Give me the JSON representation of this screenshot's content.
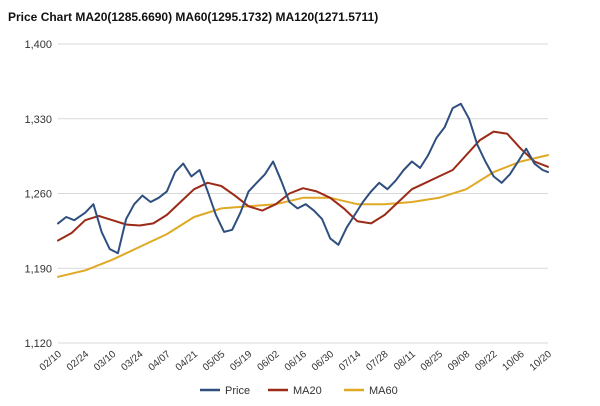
{
  "chart_data": {
    "type": "line",
    "title": "Price Chart MA20(1285.6690) MA60(1295.1732) MA120(1271.5711)",
    "ylim": [
      1120,
      1400
    ],
    "yticks": [
      1120,
      1190,
      1260,
      1330,
      1400
    ],
    "ytick_labels": [
      "1,120",
      "1,190",
      "1,260",
      "1,330",
      "1,400"
    ],
    "grid": true,
    "legend_position": "bottom",
    "categories": [
      "02/10",
      "02/24",
      "03/10",
      "03/24",
      "04/07",
      "04/21",
      "05/05",
      "05/19",
      "06/02",
      "06/16",
      "06/30",
      "07/14",
      "07/28",
      "08/11",
      "08/25",
      "09/08",
      "09/22",
      "10/06",
      "10/20"
    ],
    "series": [
      {
        "name": "Price",
        "color": "#2f4f7f",
        "x": [
          0,
          0.3,
          0.6,
          1,
          1.3,
          1.6,
          1.9,
          2.2,
          2.5,
          2.8,
          3.1,
          3.4,
          3.7,
          4,
          4.3,
          4.6,
          4.9,
          5.2,
          5.5,
          5.8,
          6.1,
          6.4,
          6.7,
          7,
          7.3,
          7.6,
          7.9,
          8.2,
          8.5,
          8.8,
          9.1,
          9.4,
          9.7,
          10,
          10.3,
          10.6,
          10.9,
          11.2,
          11.5,
          11.8,
          12.1,
          12.4,
          12.7,
          13,
          13.3,
          13.6,
          13.9,
          14.2,
          14.5,
          14.8,
          15.1,
          15.4,
          15.7,
          16,
          16.3,
          16.6,
          16.9,
          17.2,
          17.5,
          17.8,
          18
        ],
        "values": [
          1232,
          1238,
          1235,
          1242,
          1250,
          1224,
          1208,
          1204,
          1236,
          1250,
          1258,
          1252,
          1256,
          1262,
          1280,
          1288,
          1276,
          1282,
          1262,
          1240,
          1224,
          1226,
          1242,
          1262,
          1270,
          1278,
          1290,
          1272,
          1252,
          1246,
          1250,
          1244,
          1236,
          1218,
          1212,
          1228,
          1240,
          1252,
          1262,
          1270,
          1264,
          1272,
          1282,
          1290,
          1284,
          1296,
          1312,
          1322,
          1340,
          1344,
          1330,
          1306,
          1290,
          1276,
          1270,
          1278,
          1290,
          1302,
          1288,
          1282,
          1280
        ]
      },
      {
        "name": "MA20",
        "color": "#9b2a17",
        "x": [
          0,
          0.5,
          1,
          1.5,
          2,
          2.5,
          3,
          3.5,
          4,
          4.5,
          5,
          5.5,
          6,
          6.5,
          7,
          7.5,
          8,
          8.5,
          9,
          9.5,
          10,
          10.5,
          11,
          11.5,
          12,
          12.5,
          13,
          13.5,
          14,
          14.5,
          15,
          15.5,
          16,
          16.5,
          17,
          17.5,
          18
        ],
        "values": [
          1216,
          1223,
          1235,
          1239,
          1235,
          1231,
          1230,
          1232,
          1240,
          1252,
          1264,
          1270,
          1267,
          1258,
          1248,
          1244,
          1250,
          1260,
          1265,
          1262,
          1256,
          1246,
          1234,
          1232,
          1240,
          1252,
          1264,
          1270,
          1276,
          1282,
          1296,
          1310,
          1318,
          1316,
          1302,
          1290,
          1285
        ]
      },
      {
        "name": "MA60",
        "color": "#e0a925",
        "x": [
          0,
          1,
          2,
          3,
          4,
          5,
          6,
          7,
          8,
          9,
          10,
          11,
          12,
          13,
          14,
          15,
          16,
          17,
          18
        ],
        "values": [
          1182,
          1188,
          1198,
          1210,
          1222,
          1238,
          1246,
          1248,
          1250,
          1256,
          1256,
          1250,
          1250,
          1252,
          1256,
          1264,
          1280,
          1290,
          1296
        ]
      }
    ]
  }
}
